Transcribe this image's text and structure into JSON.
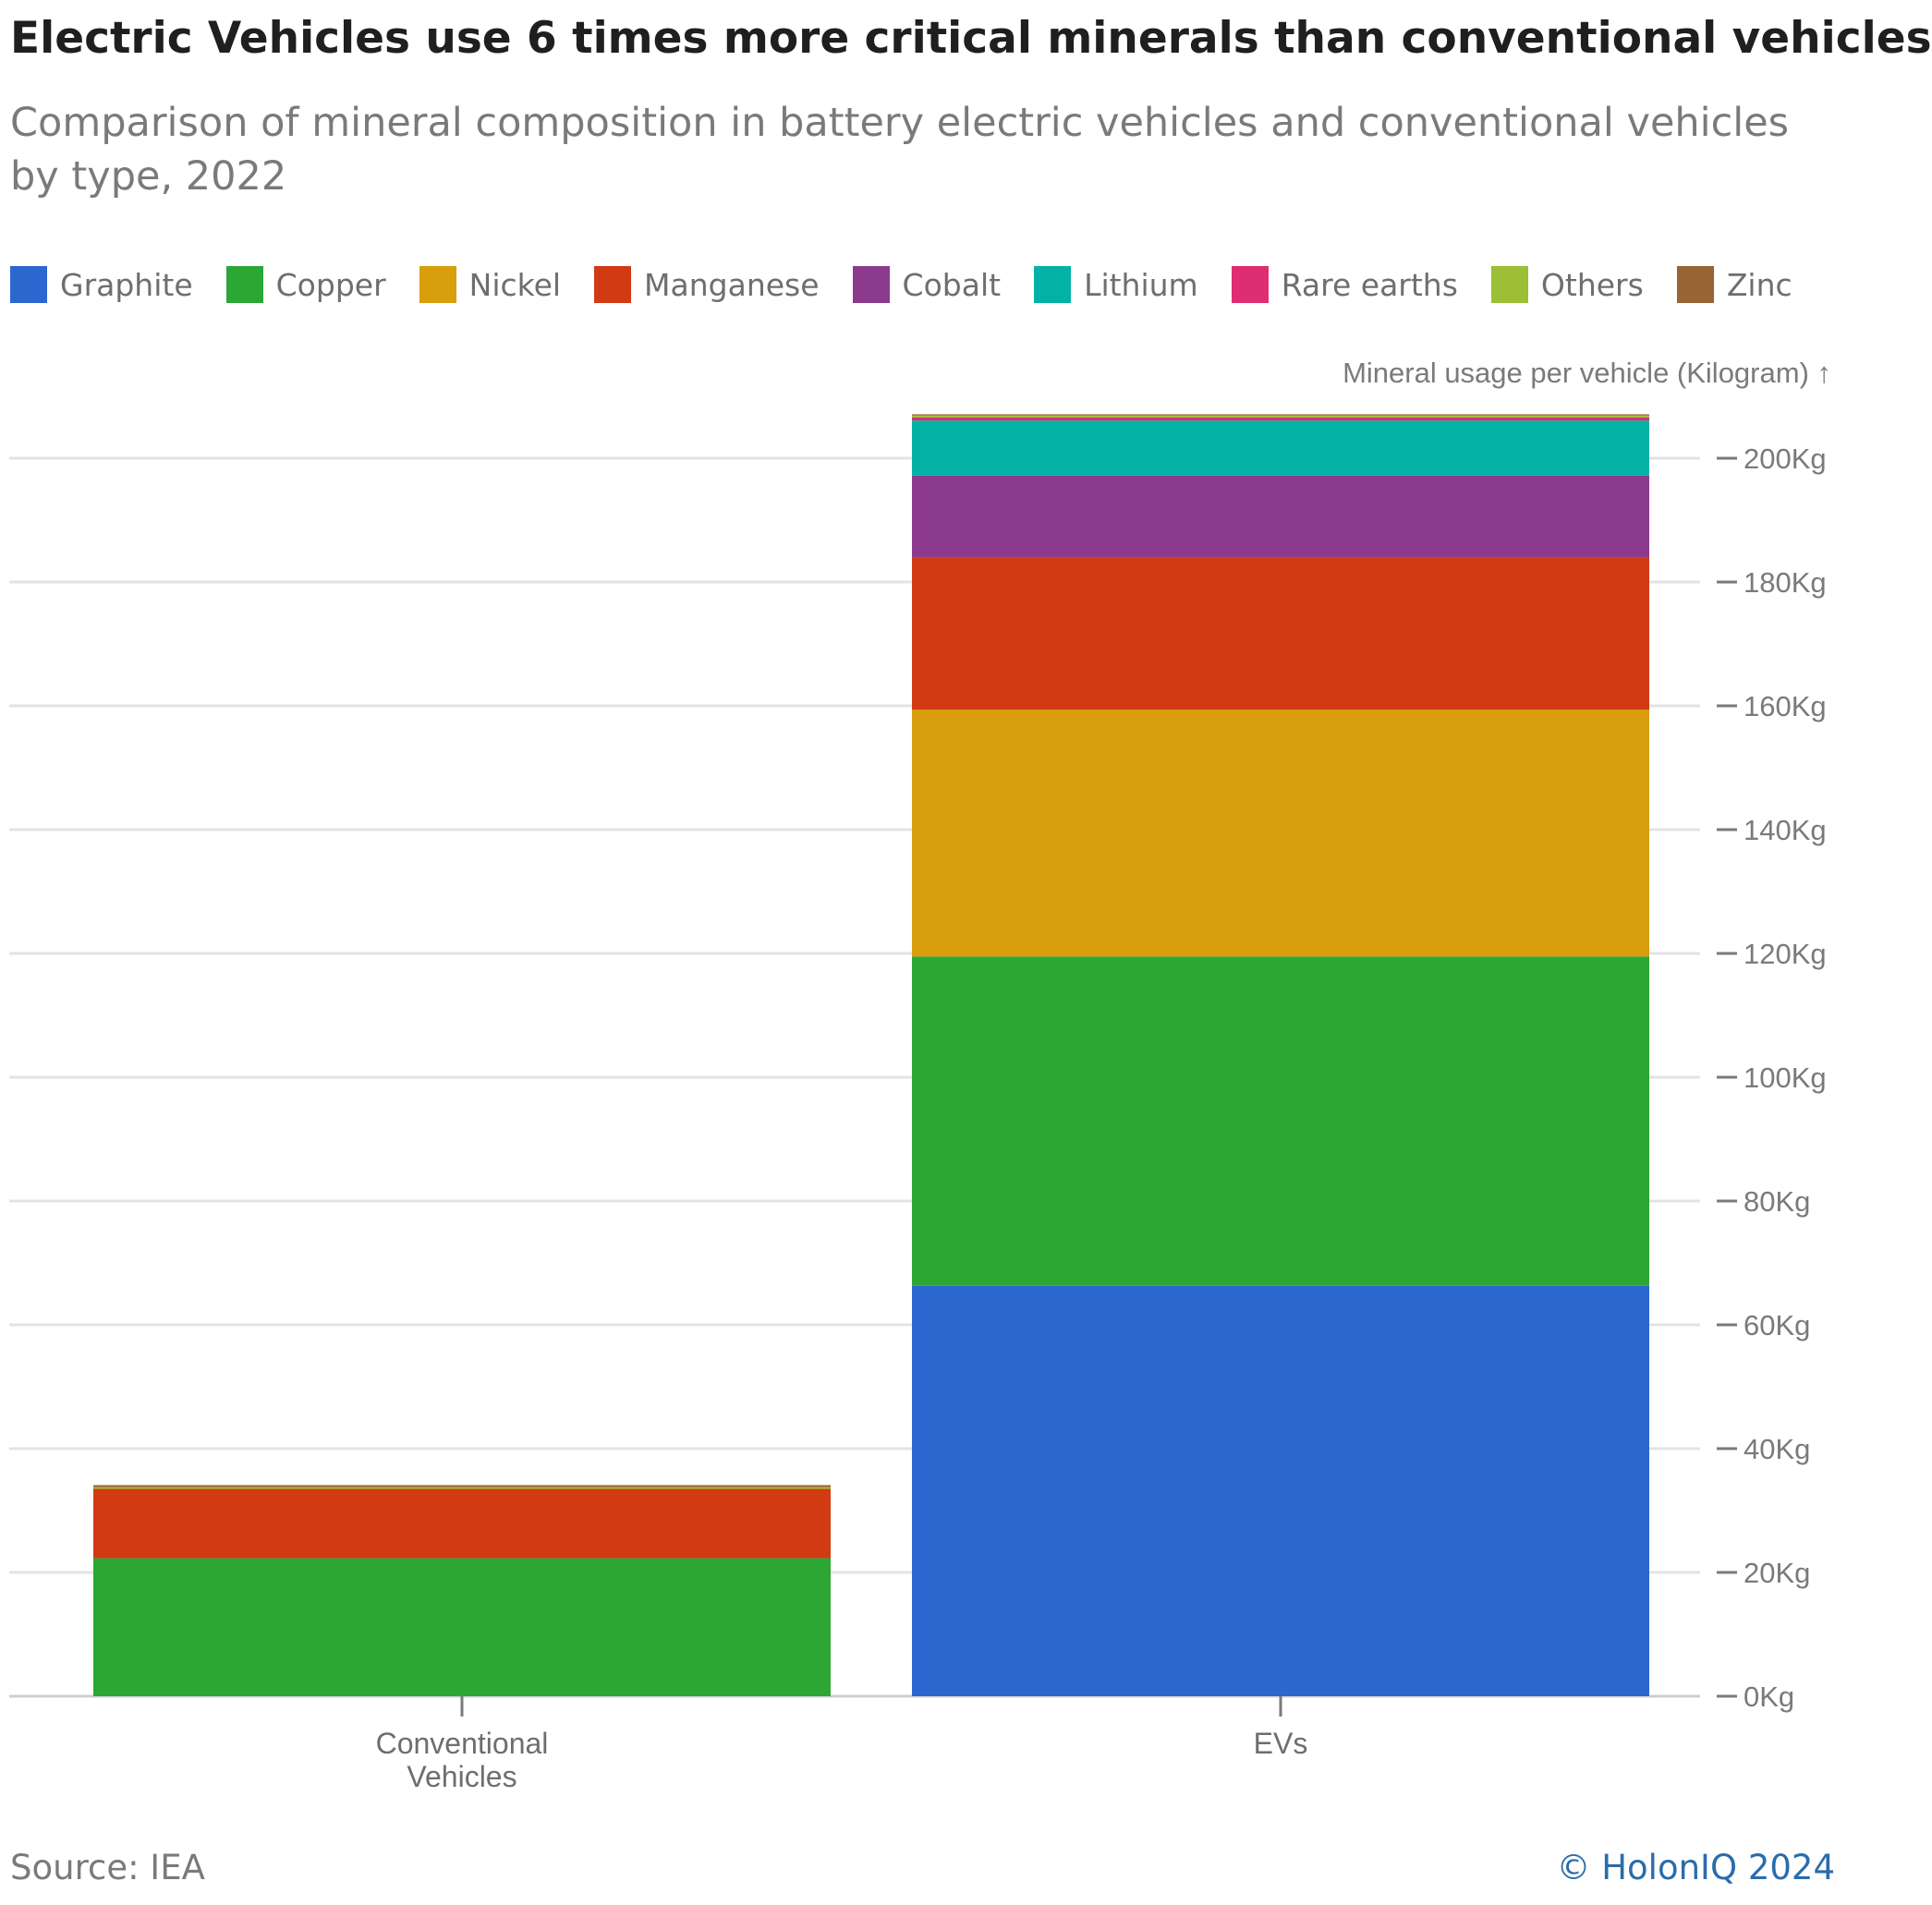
{
  "header": {
    "title": "Electric Vehicles use 6 times more critical minerals than conventional vehicles",
    "subtitle": "Comparison of mineral composition in battery electric vehicles and conventional vehicles by type, 2022"
  },
  "footer": {
    "source": "Source: IEA",
    "credit": "© HolonIQ 2024"
  },
  "chart_data": {
    "type": "bar",
    "stacked": true,
    "title": "Electric Vehicles use 6 times more critical minerals than conventional vehicles",
    "subtitle": "Comparison of mineral composition in battery electric vehicles and conventional vehicles by type, 2022",
    "categories": [
      "Conventional Vehicles",
      "EVs"
    ],
    "category_labels": [
      [
        "Conventional",
        "Vehicles"
      ],
      [
        "EVs"
      ]
    ],
    "ylabel": "Mineral usage per vehicle (Kilogram) ↑",
    "ylim": [
      0,
      207
    ],
    "yticks": [
      0,
      20,
      40,
      60,
      80,
      100,
      120,
      140,
      160,
      180,
      200
    ],
    "ytick_suffix": "Kg",
    "grid": true,
    "legend_position": "top-left",
    "series": [
      {
        "name": "Graphite",
        "color": "#2b67cf",
        "values": [
          0,
          66.3
        ]
      },
      {
        "name": "Copper",
        "color": "#2ca635",
        "values": [
          22.3,
          53.2
        ]
      },
      {
        "name": "Nickel",
        "color": "#d89e0c",
        "values": [
          0,
          39.9
        ]
      },
      {
        "name": "Manganese",
        "color": "#d13a13",
        "values": [
          11.2,
          24.5
        ]
      },
      {
        "name": "Cobalt",
        "color": "#8c3a8d",
        "values": [
          0,
          13.3
        ]
      },
      {
        "name": "Lithium",
        "color": "#03b2a5",
        "values": [
          0,
          8.9
        ]
      },
      {
        "name": "Rare earths",
        "color": "#de2d72",
        "values": [
          0,
          0.5
        ]
      },
      {
        "name": "Others",
        "color": "#9cbf35",
        "values": [
          0.3,
          0.3
        ]
      },
      {
        "name": "Zinc",
        "color": "#976531",
        "values": [
          0.3,
          0.2
        ]
      }
    ]
  }
}
